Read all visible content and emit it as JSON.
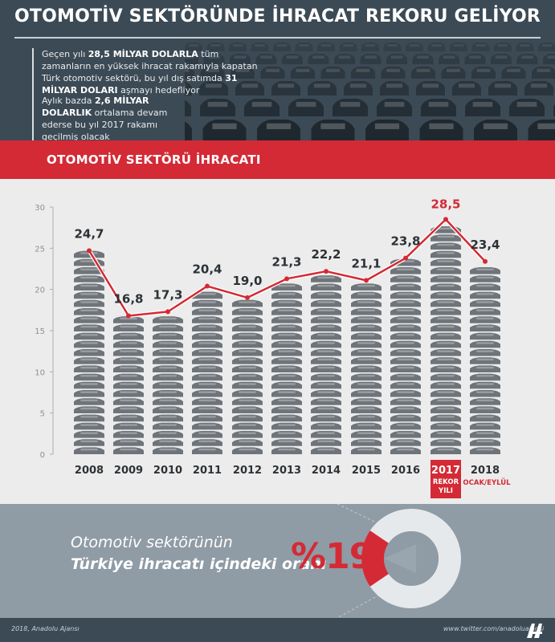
{
  "header": {
    "title": "OTOMOTİV SEKTÖRÜNDE İHRACAT REKORU GELİYOR",
    "p1_a": "Geçen yılı ",
    "p1_b": "28,5 MİLYAR DOLARLA",
    "p1_c": " tüm zamanların en yüksek ihracat rakamıyla kapatan Türk otomotiv sektörü, bu yıl dış satımda ",
    "p1_d": "31 MİLYAR DOLARI",
    "p1_e": " aşmayı hedefliyor",
    "p2_a": "Aylık bazda ",
    "p2_b": "2,6 MİLYAR DOLARLIK",
    "p2_c": " ortalama devam ederse bu yıl 2017 rakamı geçilmiş olacak"
  },
  "section_title": "OTOMOTİV SEKTÖRÜ İHRACATI",
  "chart_data": {
    "type": "bar",
    "categories": [
      "2008",
      "2009",
      "2010",
      "2011",
      "2012",
      "2013",
      "2014",
      "2015",
      "2016",
      "2017",
      "2018"
    ],
    "values": [
      24.7,
      16.8,
      17.3,
      20.4,
      19.0,
      21.3,
      22.2,
      21.1,
      23.8,
      28.5,
      23.4
    ],
    "value_labels": [
      "24,7",
      "16,8",
      "17,3",
      "20,4",
      "19,0",
      "21,3",
      "22,2",
      "21,1",
      "23,8",
      "28,5",
      "23,4"
    ],
    "yticks": [
      "0",
      "5",
      "10",
      "15",
      "20",
      "25",
      "30"
    ],
    "ylim": [
      0,
      30
    ],
    "highlight_index": 9,
    "highlight_note": [
      "REKOR",
      "YILI"
    ],
    "last_note": "OCAK/EYLÜL",
    "bar_color": "#6e7479",
    "highlight_color": "#d42a35",
    "line_color": "#d42a35",
    "grid": false
  },
  "bottom": {
    "line1": "Otomotiv sektörünün",
    "line2": "Türkiye ihracatı içindeki oranı",
    "percent_text": "%19",
    "share": 19
  },
  "footer": {
    "credit": "2018, Anadolu Ajansı",
    "twitter": "www.twitter.com/anadoluajansi",
    "logo": "aa-logo-icon"
  }
}
